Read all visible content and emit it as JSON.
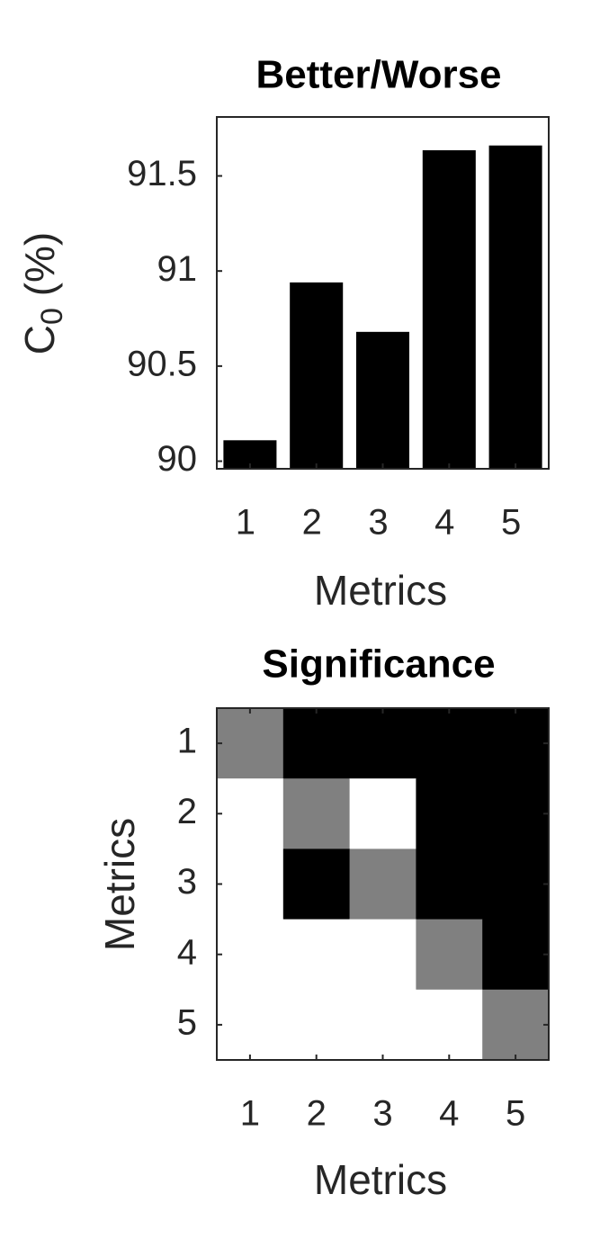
{
  "chart_data": [
    {
      "type": "bar",
      "title": "Better/Worse",
      "categories": [
        "1",
        "2",
        "3",
        "4",
        "5"
      ],
      "values": [
        90.11,
        90.94,
        90.68,
        91.635,
        91.66
      ],
      "color": "#000000",
      "xlabel": "Metrics",
      "ylabel": [
        "C",
        "0",
        " (%)"
      ],
      "ylim": [
        89.96,
        91.81
      ],
      "yticks": [
        90,
        90.5,
        91,
        91.5
      ]
    },
    {
      "type": "heatmap",
      "title": "Significance",
      "x_categories": [
        "1",
        "2",
        "3",
        "4",
        "5"
      ],
      "y_categories": [
        "1",
        "2",
        "3",
        "4",
        "5"
      ],
      "z": [
        [
          0.5,
          1,
          1,
          1,
          1
        ],
        [
          0,
          0.5,
          0,
          1,
          1
        ],
        [
          0,
          1,
          0.5,
          1,
          1
        ],
        [
          0,
          0,
          0,
          0.5,
          1
        ],
        [
          0,
          0,
          0,
          0,
          0.5
        ]
      ],
      "zlim": [
        0,
        1
      ],
      "colormap": [
        "#ffffff",
        "#000000"
      ],
      "xlabel": "Metrics",
      "ylabel": "Metrics"
    }
  ]
}
